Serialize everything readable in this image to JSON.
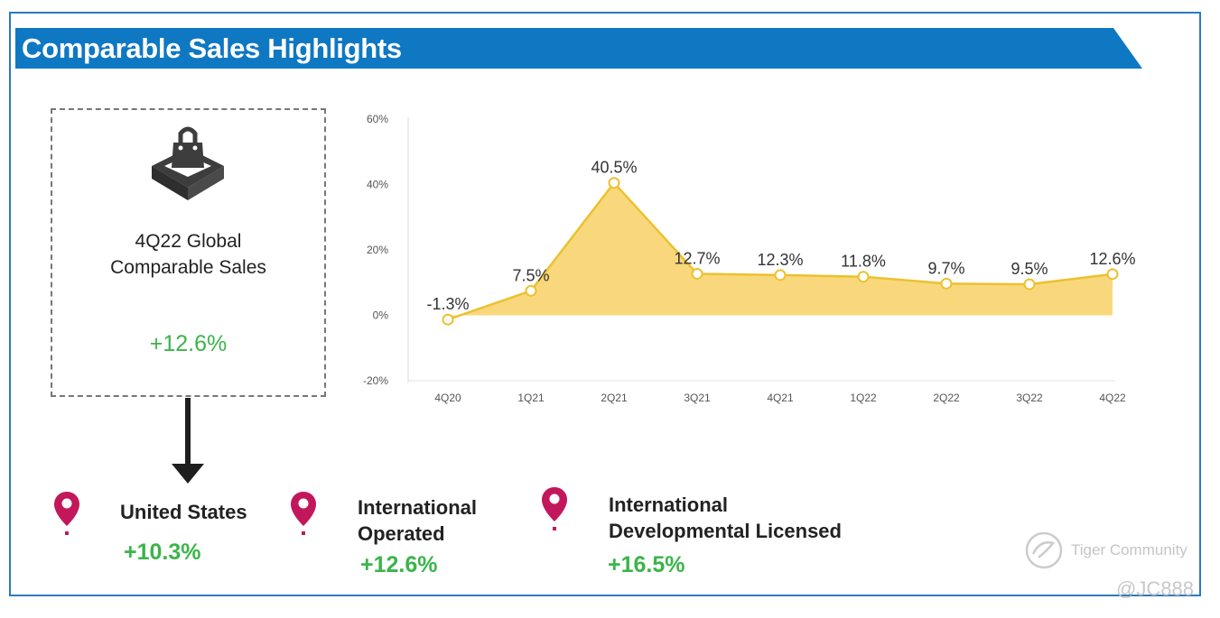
{
  "header": {
    "title": "Comparable Sales Highlights"
  },
  "global": {
    "label_line1": "4Q22 Global",
    "label_line2": "Comparable Sales",
    "value": "+12.6%",
    "icon": "shopping-bag-icon"
  },
  "regions": [
    {
      "label_line1": "United States",
      "label_line2": "",
      "value": "+10.3%",
      "icon": "map-pin-icon"
    },
    {
      "label_line1": "International",
      "label_line2": "Operated",
      "value": "+12.6%",
      "icon": "map-pin-icon"
    },
    {
      "label_line1": "International",
      "label_line2": "Developmental Licensed",
      "value": "+16.5%",
      "icon": "map-pin-icon"
    }
  ],
  "chart_data": {
    "type": "area",
    "title": "",
    "xlabel": "",
    "ylabel": "",
    "categories": [
      "4Q20",
      "1Q21",
      "2Q21",
      "3Q21",
      "4Q21",
      "1Q22",
      "2Q22",
      "3Q22",
      "4Q22"
    ],
    "values": [
      -1.3,
      7.5,
      40.5,
      12.7,
      12.3,
      11.8,
      9.7,
      9.5,
      12.6
    ],
    "data_labels": [
      "-1.3%",
      "7.5%",
      "40.5%",
      "12.7%",
      "12.3%",
      "11.8%",
      "9.7%",
      "9.5%",
      "12.6%"
    ],
    "ylim": [
      -20,
      60
    ],
    "yticks": [
      -20,
      0,
      20,
      40,
      60
    ],
    "ytick_labels": [
      "-20%",
      "0%",
      "20%",
      "40%",
      "60%"
    ],
    "grid": false,
    "legend": "none",
    "colors": {
      "fill": "#f8d572",
      "line": "#ecc12f",
      "marker_fill": "#ffffff"
    }
  },
  "watermark": {
    "text": "Tiger Community",
    "handle": "@JC888"
  },
  "colors": {
    "banner": "#0f78c3",
    "positive": "#3ab54a",
    "pin": "#c2185b",
    "icon_dark": "#3d3d3d"
  }
}
